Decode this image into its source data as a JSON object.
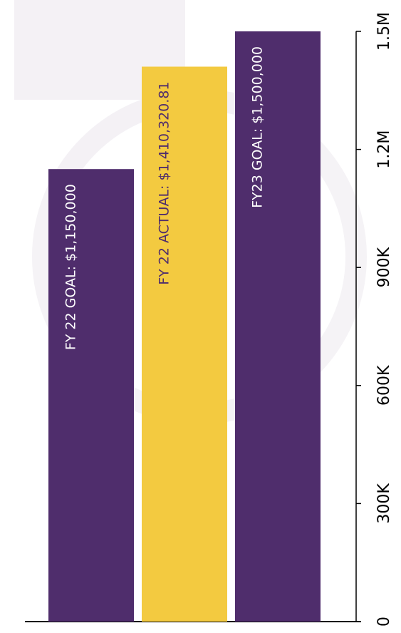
{
  "chart_data": {
    "type": "bar",
    "values": [
      1150000,
      1410320.81,
      1500000
    ],
    "value_labels": [
      "FY 22 GOAL: $1,150,000",
      "FY 22 ACTUAL: $1,410,320.81",
      "FY23 GOAL: $1,500,000"
    ],
    "colors": [
      "#4f2d6c",
      "#f3ca40",
      "#4f2d6c"
    ],
    "label_colors": [
      "#ffffff",
      "#4f2d6c",
      "#ffffff"
    ],
    "ylim": [
      0,
      1500000
    ],
    "yticks": [
      0,
      {
        "value": 300000,
        "label": "300K"
      },
      {
        "value": 600000,
        "label": "600K"
      },
      {
        "value": 900000,
        "label": "900K"
      },
      {
        "value": 1200000,
        "label": "1.2M"
      },
      {
        "value": 1500000,
        "label": "1.5M"
      }
    ]
  }
}
